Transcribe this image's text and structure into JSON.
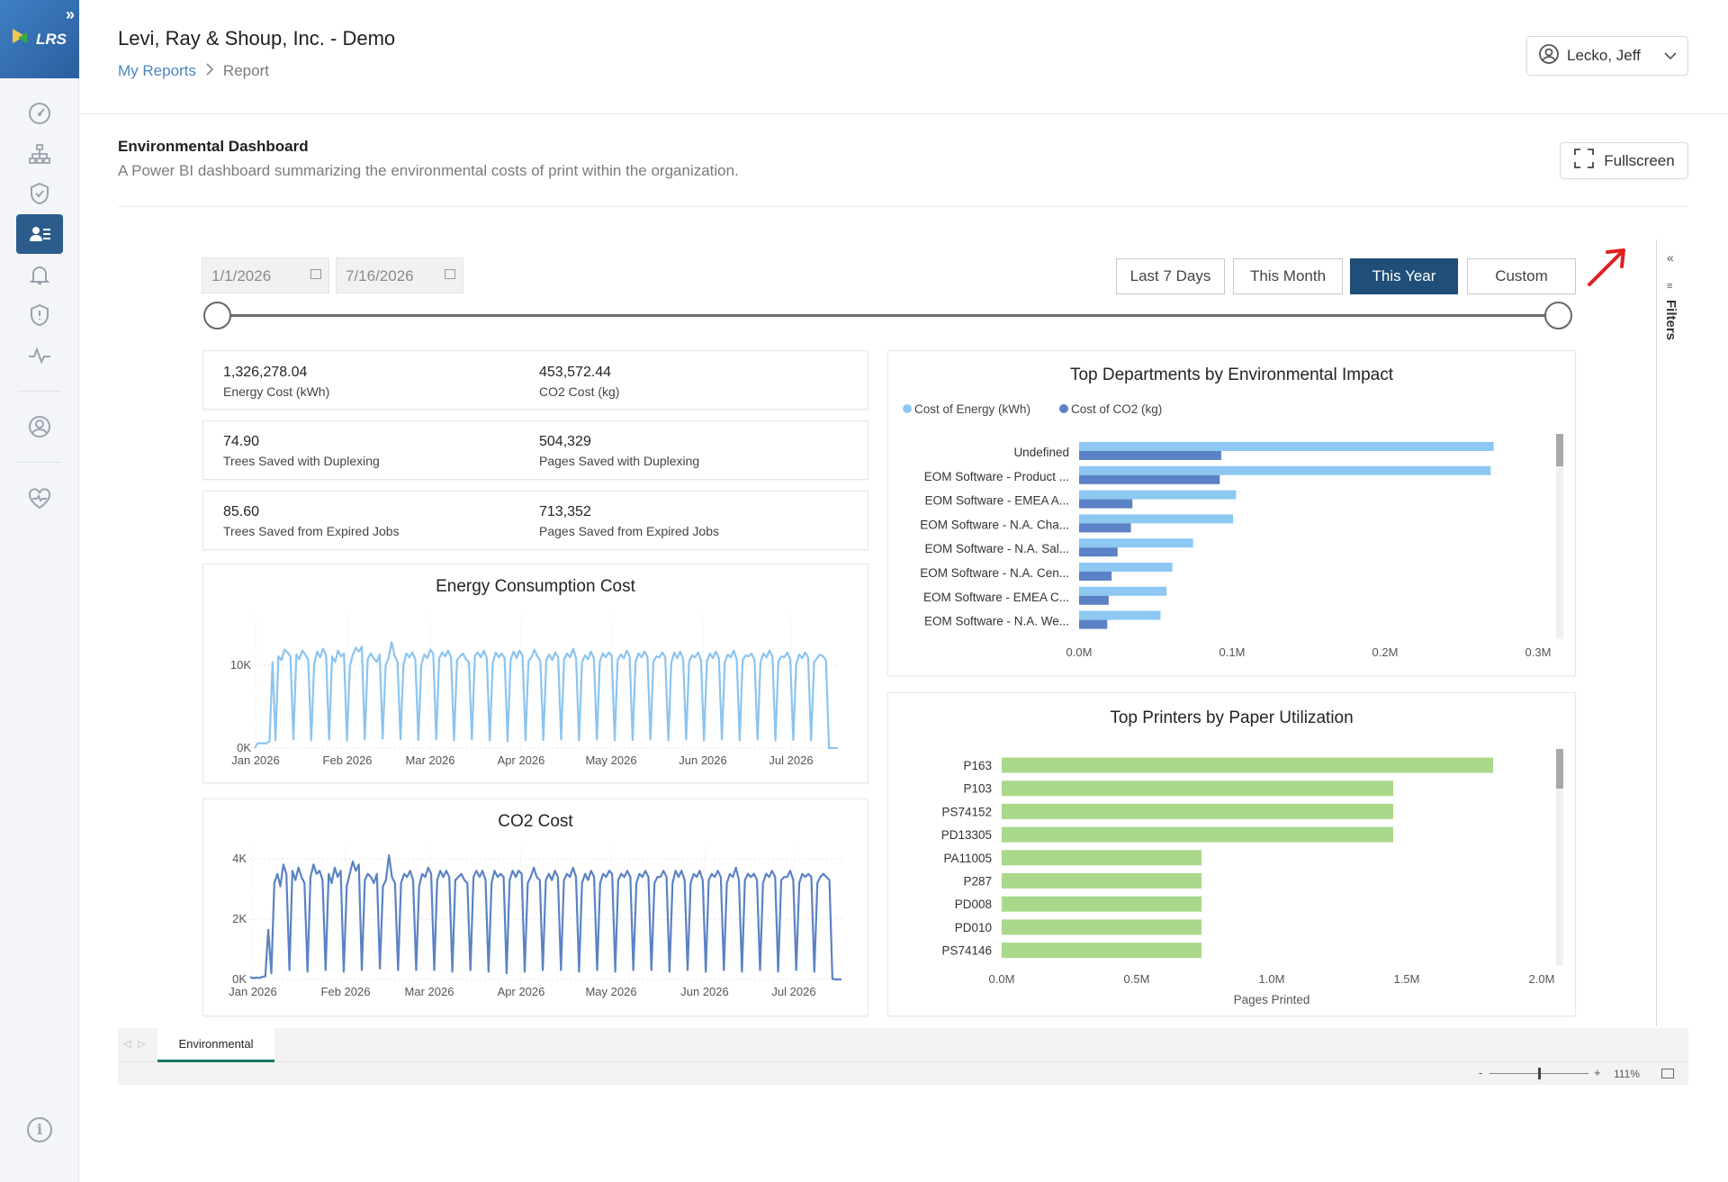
{
  "app": {
    "org_title": "Levi, Ray & Shoup, Inc. - Demo",
    "logo_text": "LRS",
    "breadcrumb": {
      "link": "My Reports",
      "current": "Report"
    },
    "user": {
      "name": "Lecko, Jeff"
    }
  },
  "sidebar": {
    "icons": [
      "dashboard-gauge-icon",
      "org-chart-icon",
      "shield-check-icon",
      "user-report-icon",
      "bell-icon",
      "shield-alert-icon",
      "activity-icon",
      "user-circle-icon",
      "heart-pulse-icon",
      "info-icon"
    ],
    "active": "user-report-icon"
  },
  "report": {
    "title": "Environmental Dashboard",
    "description": "A Power BI dashboard summarizing the environmental costs of print within the organization.",
    "fullscreen_label": "Fullscreen"
  },
  "filters": {
    "start_date": "1/1/2026",
    "end_date": "7/16/2026",
    "ranges": [
      "Last 7 Days",
      "This Month",
      "This Year",
      "Custom"
    ],
    "active_range": "This Year",
    "pane_label": "Filters"
  },
  "kpis": [
    {
      "value": "1,326,278.04",
      "label": "Energy Cost (kWh)"
    },
    {
      "value": "453,572.44",
      "label": "CO2 Cost (kg)"
    },
    {
      "value": "74.90",
      "label": "Trees Saved with Duplexing"
    },
    {
      "value": "504,329",
      "label": "Pages Saved with Duplexing"
    },
    {
      "value": "85.60",
      "label": "Trees Saved from Expired Jobs"
    },
    {
      "value": "713,352",
      "label": "Pages Saved from Expired Jobs"
    }
  ],
  "chart_data": [
    {
      "type": "line",
      "title": "Energy Consumption Cost",
      "x_ticks": [
        "Jan 2026",
        "Feb 2026",
        "Mar 2026",
        "Apr 2026",
        "May 2026",
        "Jun 2026",
        "Jul 2026"
      ],
      "y_ticks": [
        "10K",
        "0K"
      ],
      "ylim": [
        0,
        13000
      ],
      "series": [
        {
          "color": "#8cc4ef",
          "values": [
            0,
            500,
            500,
            500,
            500,
            700,
            9000,
            800,
            9600,
            9200,
            10300,
            10000,
            9600,
            900,
            9800,
            9300,
            10200,
            9800,
            9200,
            800,
            8800,
            10100,
            9500,
            10400,
            9700,
            900,
            9600,
            9000,
            10200,
            9600,
            9900,
            800,
            8600,
            9800,
            10500,
            10100,
            10600,
            900,
            9300,
            9900,
            9400,
            9000,
            9800,
            1000,
            8700,
            9400,
            11100,
            9700,
            9000,
            900,
            8800,
            9900,
            9500,
            10000,
            9300,
            850,
            8700,
            9800,
            9400,
            10300,
            9900,
            900,
            9400,
            10000,
            9600,
            10200,
            9500,
            800,
            9200,
            9600,
            9900,
            9300,
            9000,
            900,
            9700,
            10000,
            9500,
            10200,
            9400,
            800,
            8900,
            10000,
            9500,
            9900,
            9400,
            700,
            9200,
            10100,
            9400,
            10200,
            9700,
            800,
            9100,
            9500,
            10300,
            9600,
            9100,
            850,
            9200,
            9800,
            9200,
            10000,
            9500,
            900,
            9300,
            9900,
            9500,
            10400,
            9400,
            800,
            9000,
            9700,
            9300,
            10100,
            9400,
            900,
            9100,
            9900,
            9500,
            10000,
            9700,
            800,
            9200,
            9800,
            9400,
            10200,
            9600,
            850,
            9000,
            9900,
            9500,
            10100,
            9600,
            900,
            9000,
            9600,
            9500,
            10000,
            9500,
            800,
            8900,
            10000,
            9400,
            10100,
            9300,
            900,
            9100,
            9700,
            9500,
            10000,
            9200,
            800,
            9100,
            9900,
            9400,
            10100,
            9400,
            900,
            9000,
            9800,
            9500,
            10200,
            9300,
            800,
            9200,
            9700,
            9600,
            9900,
            9200,
            900,
            9000,
            9900,
            9500,
            10200,
            9600,
            800,
            9100,
            9600,
            9500,
            10000,
            9300,
            850,
            8800,
            9800,
            9400,
            10000,
            9500,
            800,
            9000,
            9400,
            9800,
            9600,
            9200,
            0,
            0,
            0,
            0
          ]
        }
      ]
    },
    {
      "type": "line",
      "title": "CO2 Cost",
      "x_ticks": [
        "Jan 2026",
        "Feb 2026",
        "Mar 2026",
        "Apr 2026",
        "May 2026",
        "Jun 2026",
        "Jul 2026"
      ],
      "y_ticks": [
        "4K",
        "2K",
        "0K"
      ],
      "ylim": [
        0,
        4000
      ],
      "series": [
        {
          "color": "#5b82c4",
          "values": [
            80,
            40,
            60,
            50,
            80,
            100,
            1600,
            200,
            3100,
            3400,
            3000,
            3700,
            3400,
            300,
            3500,
            3200,
            3600,
            3300,
            3100,
            250,
            3300,
            3700,
            3400,
            3500,
            3200,
            300,
            3400,
            3100,
            3600,
            3300,
            3500,
            250,
            3000,
            3400,
            3800,
            3500,
            3700,
            300,
            3200,
            3400,
            3300,
            3100,
            3400,
            350,
            3000,
            3200,
            4000,
            3300,
            3100,
            300,
            3100,
            3400,
            3300,
            3500,
            3200,
            300,
            3000,
            3400,
            3300,
            3600,
            3400,
            300,
            3200,
            3500,
            3300,
            3500,
            3300,
            250,
            3200,
            3300,
            3400,
            3200,
            3100,
            300,
            3300,
            3500,
            3300,
            3500,
            3200,
            250,
            3100,
            3500,
            3300,
            3400,
            3300,
            200,
            3200,
            3500,
            3300,
            3500,
            3400,
            250,
            3100,
            3300,
            3600,
            3300,
            3200,
            300,
            3200,
            3400,
            3200,
            3500,
            3300,
            300,
            3200,
            3400,
            3300,
            3600,
            3300,
            250,
            3100,
            3400,
            3200,
            3500,
            3300,
            300,
            3100,
            3400,
            3300,
            3500,
            3400,
            250,
            3200,
            3400,
            3300,
            3500,
            3300,
            300,
            3100,
            3400,
            3300,
            3500,
            3300,
            300,
            3100,
            3300,
            3300,
            3500,
            3300,
            250,
            3100,
            3500,
            3300,
            3500,
            3200,
            300,
            3100,
            3400,
            3300,
            3500,
            3200,
            250,
            3200,
            3400,
            3300,
            3500,
            3300,
            300,
            3100,
            3400,
            3300,
            3600,
            3200,
            250,
            3200,
            3400,
            3300,
            3400,
            3200,
            300,
            3100,
            3400,
            3300,
            3500,
            3300,
            250,
            3200,
            3300,
            3300,
            3500,
            3200,
            300,
            3100,
            3400,
            3300,
            3400,
            3300,
            250,
            3100,
            3300,
            3400,
            3300,
            3200,
            20,
            0,
            0,
            0
          ]
        }
      ]
    },
    {
      "type": "bar",
      "orientation": "horizontal",
      "title": "Top Departments by Environmental Impact",
      "legend": [
        {
          "name": "Cost of Energy (kWh)",
          "color": "#8cc8f2"
        },
        {
          "name": "Cost of CO2 (kg)",
          "color": "#5b82c4"
        }
      ],
      "categories": [
        "Undefined",
        "EOM Software - Product ...",
        "EOM Software - EMEA A...",
        "EOM Software - N.A. Cha...",
        "EOM Software - N.A. Sal...",
        "EOM Software - N.A. Cen...",
        "EOM Software - EMEA C...",
        "EOM Software - N.A. We..."
      ],
      "series": [
        {
          "name": "Cost of Energy (kWh)",
          "values": [
            280000,
            278000,
            106000,
            104000,
            77000,
            63000,
            59000,
            55000
          ]
        },
        {
          "name": "Cost of CO2 (kg)",
          "values": [
            96000,
            95000,
            36000,
            35000,
            26000,
            22000,
            20000,
            19000
          ]
        }
      ],
      "x_ticks": [
        "0.0M",
        "0.1M",
        "0.2M",
        "0.3M"
      ],
      "xlim": [
        0,
        310000
      ]
    },
    {
      "type": "bar",
      "orientation": "horizontal",
      "title": "Top Printers by Paper Utilization",
      "categories": [
        "P163",
        "P103",
        "PS74152",
        "PD13305",
        "PA11005",
        "P287",
        "PD008",
        "PD010",
        "PS74146"
      ],
      "series": [
        {
          "color": "#a9d88a",
          "values": [
            1820000,
            1450000,
            1450000,
            1450000,
            740000,
            740000,
            740000,
            740000,
            740000
          ]
        }
      ],
      "x_ticks": [
        "0.0M",
        "0.5M",
        "1.0M",
        "1.5M",
        "2.0M"
      ],
      "xlabel": "Pages Printed",
      "xlim": [
        0,
        2000000
      ]
    }
  ],
  "tabs": {
    "active": "Environmental"
  },
  "zoom": {
    "percent": "111%"
  }
}
